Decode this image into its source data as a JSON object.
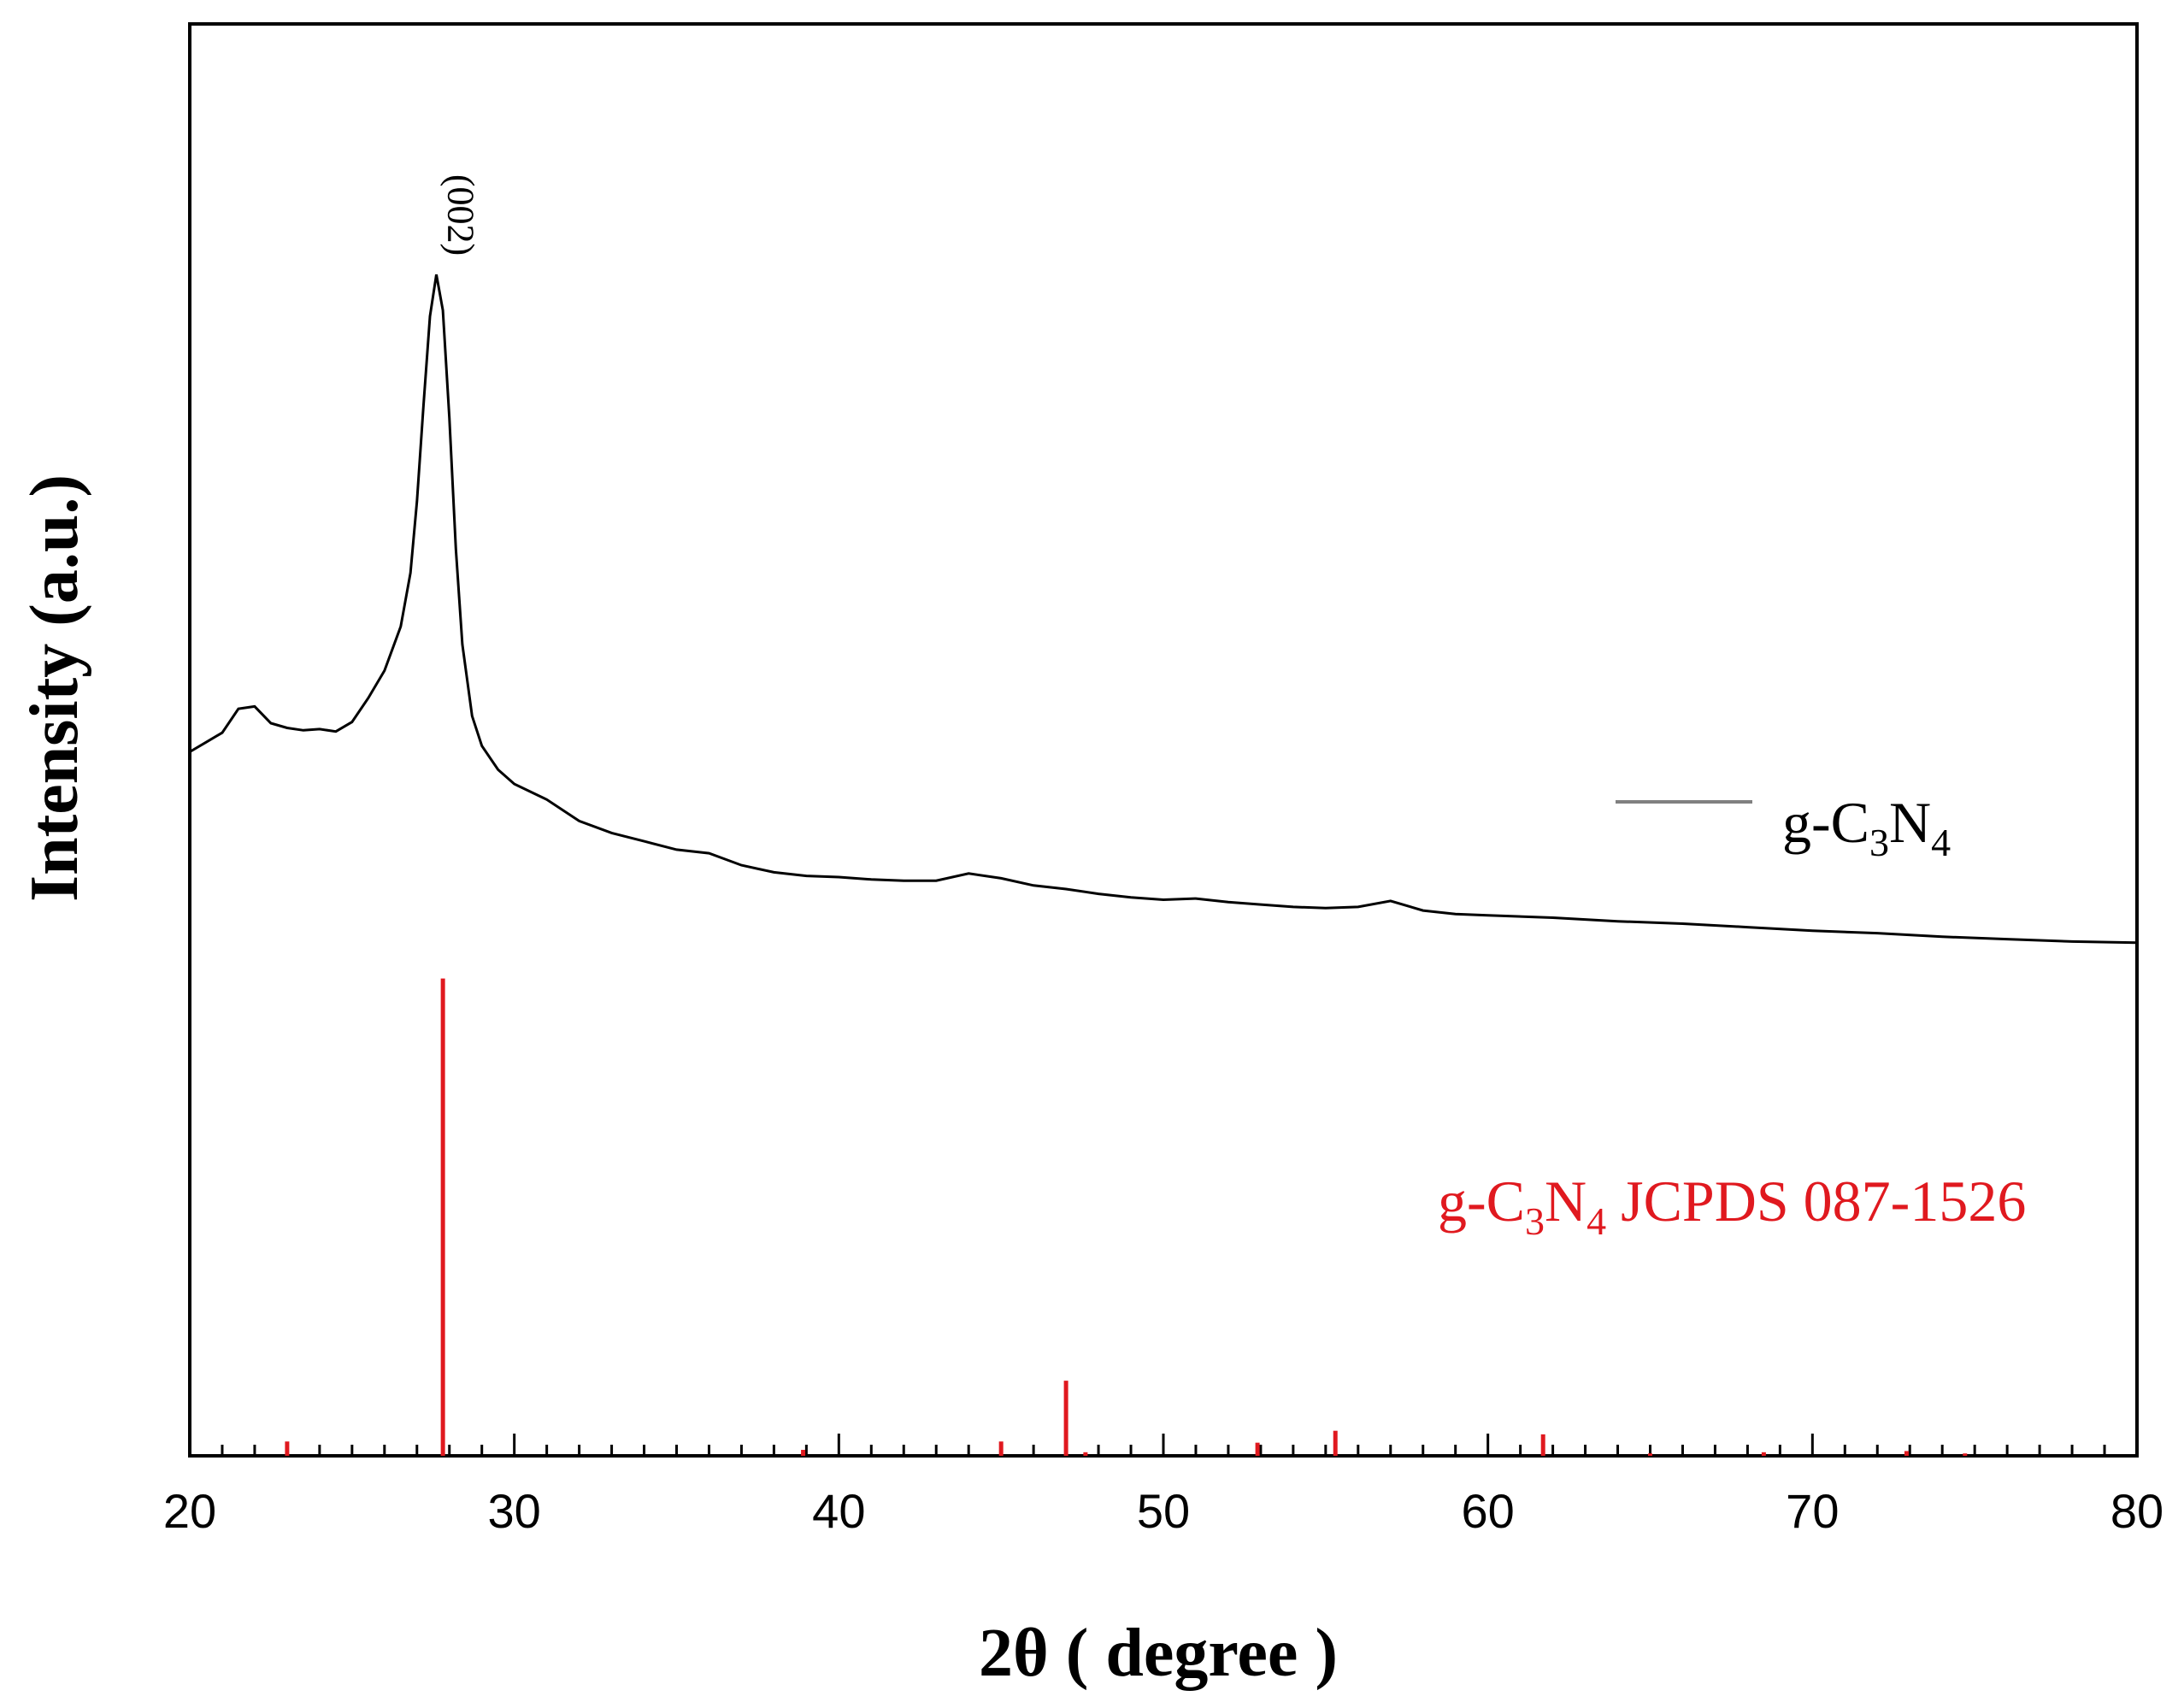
{
  "chart_data": {
    "type": "line",
    "xlabel": "2θ ( degree )",
    "ylabel": "Intensity (a.u.)",
    "xlim": [
      20,
      80
    ],
    "x_major_ticks": [
      20,
      30,
      40,
      50,
      60,
      70,
      80
    ],
    "x_tick_labels": [
      "20",
      "30",
      "40",
      "50",
      "60",
      "70",
      "80"
    ],
    "x_minor_step": 1,
    "y_ticks_shown": false,
    "grid": false,
    "legend_placement": "right-middle",
    "colors": {
      "pattern": "#000000",
      "reference": "#e0191f",
      "legend_line": "#808080"
    },
    "series": [
      {
        "name": "g-C3N4",
        "legend": {
          "prefix": "g-C",
          "sub1": "3",
          "mid": "N",
          "sub2": "4",
          "suffix": ""
        },
        "kind": "line",
        "points": [
          [
            20.0,
            59.0
          ],
          [
            20.5,
            59.8
          ],
          [
            21.0,
            60.6
          ],
          [
            21.5,
            62.6
          ],
          [
            22.0,
            62.8
          ],
          [
            22.5,
            61.4
          ],
          [
            23.0,
            61.0
          ],
          [
            23.5,
            60.8
          ],
          [
            24.0,
            60.9
          ],
          [
            24.5,
            60.7
          ],
          [
            25.0,
            61.5
          ],
          [
            25.5,
            63.5
          ],
          [
            26.0,
            65.8
          ],
          [
            26.5,
            69.5
          ],
          [
            26.8,
            74.0
          ],
          [
            27.0,
            80.0
          ],
          [
            27.2,
            88.0
          ],
          [
            27.4,
            95.5
          ],
          [
            27.6,
            99.0
          ],
          [
            27.8,
            96.0
          ],
          [
            28.0,
            87.0
          ],
          [
            28.2,
            76.0
          ],
          [
            28.4,
            68.0
          ],
          [
            28.7,
            62.0
          ],
          [
            29.0,
            59.5
          ],
          [
            29.5,
            57.5
          ],
          [
            30.0,
            56.3
          ],
          [
            31.0,
            55.0
          ],
          [
            32.0,
            53.2
          ],
          [
            33.0,
            52.2
          ],
          [
            34.0,
            51.5
          ],
          [
            35.0,
            50.8
          ],
          [
            36.0,
            50.5
          ],
          [
            37.0,
            49.5
          ],
          [
            38.0,
            48.9
          ],
          [
            39.0,
            48.6
          ],
          [
            40.0,
            48.5
          ],
          [
            41.0,
            48.3
          ],
          [
            42.0,
            48.2
          ],
          [
            43.0,
            48.2
          ],
          [
            44.0,
            48.8
          ],
          [
            45.0,
            48.4
          ],
          [
            46.0,
            47.8
          ],
          [
            47.0,
            47.5
          ],
          [
            48.0,
            47.1
          ],
          [
            49.0,
            46.8
          ],
          [
            50.0,
            46.6
          ],
          [
            51.0,
            46.7
          ],
          [
            52.0,
            46.4
          ],
          [
            53.0,
            46.2
          ],
          [
            54.0,
            46.0
          ],
          [
            55.0,
            45.9
          ],
          [
            56.0,
            46.0
          ],
          [
            57.0,
            46.5
          ],
          [
            58.0,
            45.7
          ],
          [
            59.0,
            45.4
          ],
          [
            60.0,
            45.3
          ],
          [
            62.0,
            45.1
          ],
          [
            64.0,
            44.8
          ],
          [
            66.0,
            44.6
          ],
          [
            68.0,
            44.3
          ],
          [
            70.0,
            44.0
          ],
          [
            72.0,
            43.8
          ],
          [
            74.0,
            43.5
          ],
          [
            76.0,
            43.3
          ],
          [
            78.0,
            43.1
          ],
          [
            80.0,
            43.0
          ]
        ]
      },
      {
        "name": "g-C3N4 JCPDS 087-1526",
        "legend": {
          "prefix": "g-C",
          "sub1": "3",
          "mid": "N",
          "sub2": "4",
          "suffix": " JCPDS 087-1526"
        },
        "kind": "sticks",
        "points": [
          [
            23.0,
            1.2
          ],
          [
            27.8,
            40.0
          ],
          [
            38.9,
            0.5
          ],
          [
            45.0,
            1.2
          ],
          [
            47.0,
            6.3
          ],
          [
            47.6,
            0.3
          ],
          [
            52.9,
            1.1
          ],
          [
            55.3,
            2.1
          ],
          [
            61.7,
            1.8
          ],
          [
            65.0,
            0.2
          ],
          [
            68.5,
            0.3
          ],
          [
            72.9,
            0.4
          ],
          [
            74.7,
            0.2
          ]
        ]
      }
    ],
    "annotations": [
      {
        "text": "(002)",
        "x": 27.6,
        "y": 99.0,
        "rotation": 90
      }
    ],
    "ylim": [
      0,
      120
    ]
  }
}
